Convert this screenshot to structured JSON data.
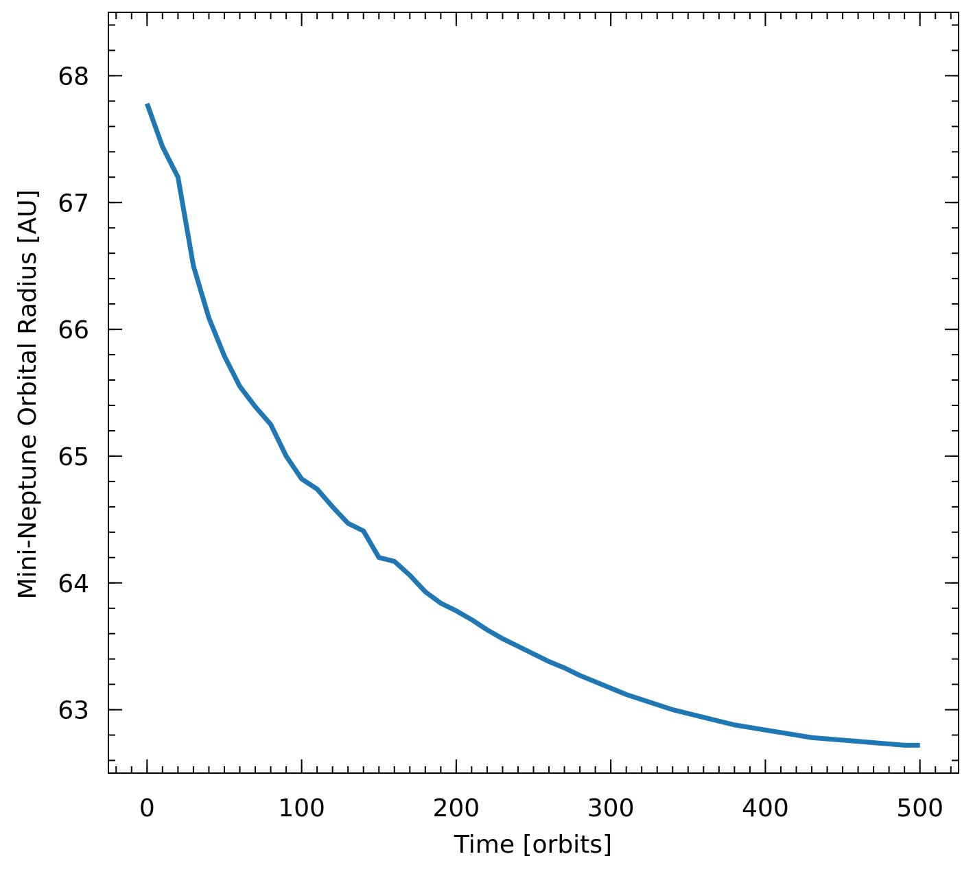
{
  "chart_data": {
    "type": "line",
    "xlabel": "Time [orbits]",
    "ylabel": "Mini-Neptune Orbital Radius [AU]",
    "x": [
      0,
      10,
      20,
      30,
      40,
      50,
      60,
      70,
      80,
      90,
      100,
      110,
      120,
      130,
      140,
      150,
      160,
      170,
      180,
      190,
      200,
      210,
      220,
      230,
      240,
      250,
      260,
      270,
      280,
      290,
      300,
      310,
      320,
      330,
      340,
      350,
      360,
      370,
      380,
      390,
      400,
      410,
      420,
      430,
      440,
      450,
      460,
      470,
      480,
      490,
      500
    ],
    "series": [
      {
        "color": "#1f77b4",
        "values": [
          67.78,
          67.44,
          67.2,
          66.5,
          66.09,
          65.79,
          65.55,
          65.39,
          65.25,
          65.0,
          64.82,
          64.74,
          64.6,
          64.47,
          64.41,
          64.2,
          64.17,
          64.06,
          63.93,
          63.84,
          63.78,
          63.71,
          63.63,
          63.56,
          63.5,
          63.44,
          63.38,
          63.33,
          63.27,
          63.22,
          63.17,
          63.12,
          63.08,
          63.04,
          63.0,
          62.97,
          62.94,
          62.91,
          62.88,
          62.86,
          62.84,
          62.82,
          62.8,
          62.78,
          62.77,
          62.76,
          62.75,
          62.74,
          62.73,
          62.72,
          62.72
        ]
      }
    ],
    "xlim": [
      -25,
      525
    ],
    "ylim": [
      62.5,
      68.5
    ],
    "xticks": [
      0,
      100,
      200,
      300,
      400,
      500
    ],
    "yticks": [
      63,
      64,
      65,
      66,
      67,
      68
    ],
    "x_minor_divisions": 10,
    "y_minor_divisions": 5
  }
}
